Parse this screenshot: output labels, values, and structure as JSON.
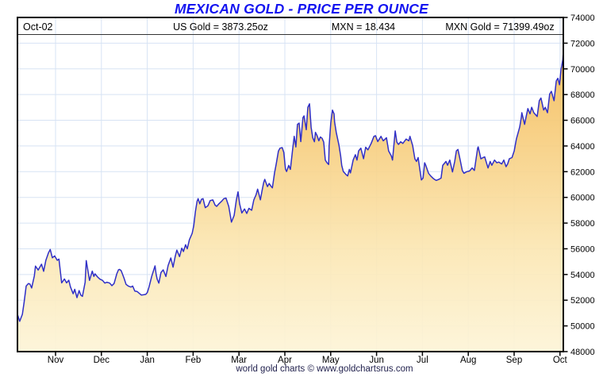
{
  "title": "MEXICAN GOLD - PRICE PER OUNCE",
  "header": {
    "date": "Oct-02",
    "us_gold": "US Gold = 3873.25oz",
    "mxn_rate": "MXN = 18.434",
    "mxn_gold": "MXN Gold = 71399.49oz"
  },
  "footer": "world gold charts © www.goldchartsrus.com",
  "colors": {
    "title_blue": "#1414f0",
    "line_blue": "#2f2fc7",
    "grid": "#d7e3f4",
    "fill_top": "#f2b44a",
    "fill_mid1": "#f7cd7d",
    "fill_mid2": "#fbe7b4",
    "fill_bottom": "#fdf4d7",
    "footer_navy": "#23234f",
    "header_rule": "#333333",
    "border": "#000000"
  },
  "chart_data": {
    "type": "area",
    "title": "MEXICAN GOLD - PRICE PER OUNCE",
    "x_tick_labels": [
      "Nov",
      "Dec",
      "Jan",
      "Feb",
      "Mar",
      "Apr",
      "May",
      "Jun",
      "Jul",
      "Aug",
      "Sep",
      "Oct"
    ],
    "ylim": [
      48000,
      74000
    ],
    "y_tick_step": 2000,
    "grid": true,
    "legend": "none",
    "last_point": {
      "date": "Oct-02",
      "value": 71399.49
    },
    "series": [
      {
        "name": "MXN Gold price per ounce",
        "points": [
          [
            0.0,
            50900
          ],
          [
            0.004,
            50350
          ],
          [
            0.009,
            50900
          ],
          [
            0.012,
            51800
          ],
          [
            0.016,
            53100
          ],
          [
            0.02,
            53300
          ],
          [
            0.023,
            53250
          ],
          [
            0.026,
            52950
          ],
          [
            0.031,
            53900
          ],
          [
            0.033,
            54650
          ],
          [
            0.038,
            54350
          ],
          [
            0.044,
            54800
          ],
          [
            0.048,
            54250
          ],
          [
            0.052,
            55100
          ],
          [
            0.057,
            55700
          ],
          [
            0.06,
            55950
          ],
          [
            0.064,
            55300
          ],
          [
            0.068,
            55450
          ],
          [
            0.073,
            55100
          ],
          [
            0.076,
            55200
          ],
          [
            0.081,
            53350
          ],
          [
            0.086,
            53650
          ],
          [
            0.09,
            53350
          ],
          [
            0.094,
            53550
          ],
          [
            0.097,
            53050
          ],
          [
            0.102,
            52500
          ],
          [
            0.105,
            52850
          ],
          [
            0.109,
            52200
          ],
          [
            0.113,
            52750
          ],
          [
            0.116,
            52400
          ],
          [
            0.119,
            52300
          ],
          [
            0.124,
            53400
          ],
          [
            0.126,
            55080
          ],
          [
            0.129,
            54300
          ],
          [
            0.132,
            53540
          ],
          [
            0.137,
            54260
          ],
          [
            0.14,
            53850
          ],
          [
            0.142,
            54050
          ],
          [
            0.147,
            53800
          ],
          [
            0.151,
            53640
          ],
          [
            0.156,
            53540
          ],
          [
            0.16,
            53330
          ],
          [
            0.164,
            53400
          ],
          [
            0.169,
            53330
          ],
          [
            0.173,
            53130
          ],
          [
            0.177,
            53300
          ],
          [
            0.182,
            54050
          ],
          [
            0.185,
            54360
          ],
          [
            0.187,
            54400
          ],
          [
            0.19,
            54300
          ],
          [
            0.195,
            53740
          ],
          [
            0.199,
            53230
          ],
          [
            0.203,
            53100
          ],
          [
            0.208,
            53020
          ],
          [
            0.211,
            53100
          ],
          [
            0.215,
            52710
          ],
          [
            0.219,
            52680
          ],
          [
            0.224,
            52500
          ],
          [
            0.227,
            52400
          ],
          [
            0.231,
            52420
          ],
          [
            0.235,
            52450
          ],
          [
            0.238,
            52600
          ],
          [
            0.241,
            53020
          ],
          [
            0.246,
            53850
          ],
          [
            0.25,
            54400
          ],
          [
            0.252,
            54670
          ],
          [
            0.254,
            54000
          ],
          [
            0.256,
            53640
          ],
          [
            0.259,
            53330
          ],
          [
            0.263,
            54150
          ],
          [
            0.267,
            54360
          ],
          [
            0.272,
            53850
          ],
          [
            0.276,
            54700
          ],
          [
            0.281,
            55290
          ],
          [
            0.285,
            54570
          ],
          [
            0.289,
            55400
          ],
          [
            0.292,
            55900
          ],
          [
            0.297,
            55390
          ],
          [
            0.301,
            56050
          ],
          [
            0.304,
            55790
          ],
          [
            0.308,
            56310
          ],
          [
            0.311,
            56000
          ],
          [
            0.315,
            56700
          ],
          [
            0.32,
            57200
          ],
          [
            0.323,
            57800
          ],
          [
            0.326,
            58900
          ],
          [
            0.329,
            59700
          ],
          [
            0.331,
            59900
          ],
          [
            0.334,
            59500
          ],
          [
            0.337,
            59850
          ],
          [
            0.34,
            59900
          ],
          [
            0.344,
            59200
          ],
          [
            0.349,
            59350
          ],
          [
            0.353,
            59750
          ],
          [
            0.358,
            59800
          ],
          [
            0.362,
            59400
          ],
          [
            0.365,
            59300
          ],
          [
            0.369,
            59500
          ],
          [
            0.374,
            59700
          ],
          [
            0.378,
            59900
          ],
          [
            0.382,
            59950
          ],
          [
            0.387,
            59300
          ],
          [
            0.392,
            58070
          ],
          [
            0.397,
            58600
          ],
          [
            0.401,
            59800
          ],
          [
            0.404,
            60430
          ],
          [
            0.407,
            59500
          ],
          [
            0.411,
            58790
          ],
          [
            0.416,
            59100
          ],
          [
            0.42,
            58750
          ],
          [
            0.424,
            59150
          ],
          [
            0.429,
            59000
          ],
          [
            0.433,
            59800
          ],
          [
            0.437,
            60200
          ],
          [
            0.44,
            60640
          ],
          [
            0.445,
            59810
          ],
          [
            0.448,
            60500
          ],
          [
            0.451,
            61150
          ],
          [
            0.453,
            61400
          ],
          [
            0.458,
            60840
          ],
          [
            0.461,
            61080
          ],
          [
            0.464,
            60900
          ],
          [
            0.467,
            60740
          ],
          [
            0.471,
            61900
          ],
          [
            0.474,
            62590
          ],
          [
            0.478,
            63600
          ],
          [
            0.481,
            63830
          ],
          [
            0.485,
            63870
          ],
          [
            0.488,
            63500
          ],
          [
            0.491,
            62200
          ],
          [
            0.493,
            62010
          ],
          [
            0.497,
            62490
          ],
          [
            0.5,
            62180
          ],
          [
            0.504,
            63730
          ],
          [
            0.507,
            64750
          ],
          [
            0.51,
            63930
          ],
          [
            0.513,
            65680
          ],
          [
            0.516,
            65780
          ],
          [
            0.519,
            64340
          ],
          [
            0.523,
            66200
          ],
          [
            0.525,
            66340
          ],
          [
            0.529,
            65270
          ],
          [
            0.532,
            67010
          ],
          [
            0.535,
            67280
          ],
          [
            0.538,
            65470
          ],
          [
            0.541,
            64640
          ],
          [
            0.544,
            64330
          ],
          [
            0.546,
            65060
          ],
          [
            0.549,
            64800
          ],
          [
            0.552,
            64400
          ],
          [
            0.555,
            64700
          ],
          [
            0.558,
            64600
          ],
          [
            0.561,
            64300
          ],
          [
            0.564,
            62900
          ],
          [
            0.567,
            62700
          ],
          [
            0.57,
            62560
          ],
          [
            0.571,
            64000
          ],
          [
            0.574,
            65800
          ],
          [
            0.577,
            66790
          ],
          [
            0.58,
            66500
          ],
          [
            0.581,
            65880
          ],
          [
            0.584,
            65060
          ],
          [
            0.589,
            64070
          ],
          [
            0.592,
            63250
          ],
          [
            0.594,
            62490
          ],
          [
            0.597,
            62010
          ],
          [
            0.602,
            61770
          ],
          [
            0.605,
            61670
          ],
          [
            0.608,
            62180
          ],
          [
            0.61,
            61900
          ],
          [
            0.615,
            62900
          ],
          [
            0.619,
            63320
          ],
          [
            0.622,
            62900
          ],
          [
            0.625,
            63620
          ],
          [
            0.629,
            63830
          ],
          [
            0.634,
            63010
          ],
          [
            0.638,
            63900
          ],
          [
            0.642,
            63700
          ],
          [
            0.648,
            64200
          ],
          [
            0.653,
            64750
          ],
          [
            0.656,
            64800
          ],
          [
            0.66,
            64340
          ],
          [
            0.666,
            64750
          ],
          [
            0.67,
            64400
          ],
          [
            0.676,
            64640
          ],
          [
            0.68,
            63620
          ],
          [
            0.685,
            63210
          ],
          [
            0.687,
            62900
          ],
          [
            0.692,
            65170
          ],
          [
            0.695,
            64300
          ],
          [
            0.698,
            64120
          ],
          [
            0.702,
            64330
          ],
          [
            0.706,
            64200
          ],
          [
            0.712,
            64540
          ],
          [
            0.717,
            64400
          ],
          [
            0.719,
            64750
          ],
          [
            0.724,
            64030
          ],
          [
            0.728,
            63000
          ],
          [
            0.731,
            62800
          ],
          [
            0.734,
            63100
          ],
          [
            0.737,
            62200
          ],
          [
            0.74,
            61360
          ],
          [
            0.743,
            61500
          ],
          [
            0.746,
            62690
          ],
          [
            0.748,
            62500
          ],
          [
            0.753,
            61880
          ],
          [
            0.757,
            61670
          ],
          [
            0.762,
            61460
          ],
          [
            0.767,
            61320
          ],
          [
            0.772,
            61400
          ],
          [
            0.776,
            61500
          ],
          [
            0.779,
            62490
          ],
          [
            0.785,
            62800
          ],
          [
            0.788,
            62500
          ],
          [
            0.792,
            62900
          ],
          [
            0.797,
            61980
          ],
          [
            0.801,
            62800
          ],
          [
            0.804,
            63620
          ],
          [
            0.807,
            63730
          ],
          [
            0.811,
            62900
          ],
          [
            0.815,
            62080
          ],
          [
            0.818,
            61880
          ],
          [
            0.823,
            62000
          ],
          [
            0.828,
            62050
          ],
          [
            0.833,
            62290
          ],
          [
            0.837,
            62100
          ],
          [
            0.843,
            63830
          ],
          [
            0.844,
            63930
          ],
          [
            0.849,
            63000
          ],
          [
            0.853,
            63100
          ],
          [
            0.856,
            63150
          ],
          [
            0.862,
            62290
          ],
          [
            0.866,
            62800
          ],
          [
            0.869,
            62500
          ],
          [
            0.874,
            62900
          ],
          [
            0.878,
            62700
          ],
          [
            0.882,
            62750
          ],
          [
            0.887,
            62600
          ],
          [
            0.891,
            62900
          ],
          [
            0.895,
            62390
          ],
          [
            0.898,
            62600
          ],
          [
            0.901,
            63000
          ],
          [
            0.906,
            63100
          ],
          [
            0.91,
            63620
          ],
          [
            0.914,
            64540
          ],
          [
            0.917,
            65000
          ],
          [
            0.92,
            65470
          ],
          [
            0.923,
            66200
          ],
          [
            0.924,
            66590
          ],
          [
            0.929,
            65680
          ],
          [
            0.932,
            66300
          ],
          [
            0.935,
            66910
          ],
          [
            0.939,
            66500
          ],
          [
            0.942,
            67010
          ],
          [
            0.946,
            66590
          ],
          [
            0.952,
            66290
          ],
          [
            0.956,
            67520
          ],
          [
            0.959,
            67730
          ],
          [
            0.964,
            66800
          ],
          [
            0.967,
            67000
          ],
          [
            0.971,
            66590
          ],
          [
            0.975,
            68040
          ],
          [
            0.978,
            68250
          ],
          [
            0.983,
            67520
          ],
          [
            0.987,
            69060
          ],
          [
            0.99,
            69270
          ],
          [
            0.993,
            68760
          ],
          [
            0.996,
            70000
          ],
          [
            0.997,
            70200
          ],
          [
            0.999,
            70700
          ],
          [
            1.0,
            71399
          ]
        ]
      }
    ]
  }
}
